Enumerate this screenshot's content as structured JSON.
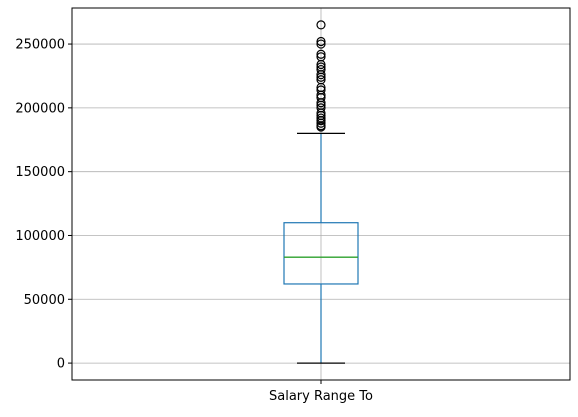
{
  "chart_data": {
    "type": "box",
    "title": "",
    "xlabel": "",
    "ylabel": "",
    "categories": [
      "Salary Range To"
    ],
    "ylim": [
      -13250,
      278250
    ],
    "yticks": [
      0,
      50000,
      100000,
      150000,
      200000,
      250000
    ],
    "ytick_labels": [
      "0",
      "50000",
      "100000",
      "150000",
      "200000",
      "250000"
    ],
    "grid": true,
    "box": {
      "whisker_low": 0,
      "q1": 62000,
      "median": 83000,
      "q3": 110000,
      "whisker_high": 180000
    },
    "outliers": [
      185000,
      186000,
      188000,
      190000,
      192000,
      194000,
      196000,
      200000,
      202000,
      204000,
      208000,
      210000,
      214000,
      216000,
      222000,
      224000,
      226000,
      230000,
      232000,
      234000,
      240000,
      242000,
      250000,
      252000,
      265000
    ],
    "colors": {
      "box": "#1f77b4",
      "median": "#2ca02c",
      "whisker": "#1f77b4",
      "cap": "#000000",
      "flier": "#000000",
      "grid": "#b0b0b0"
    }
  }
}
